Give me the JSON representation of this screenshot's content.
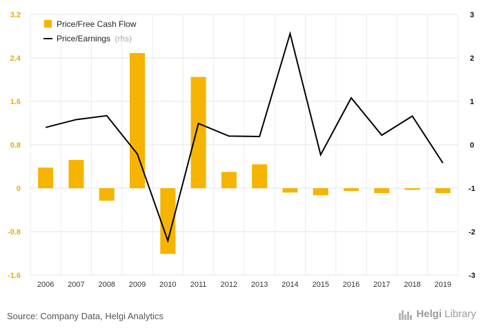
{
  "chart_data": {
    "type": "bar+line",
    "categories": [
      "2006",
      "2007",
      "2008",
      "2009",
      "2010",
      "2011",
      "2012",
      "2013",
      "2014",
      "2015",
      "2016",
      "2017",
      "2018",
      "2019"
    ],
    "series": [
      {
        "name": "Price/Free Cash Flow",
        "type": "bar",
        "axis": "left",
        "color": "#f5b400",
        "values": [
          0.38,
          0.52,
          -0.23,
          2.49,
          -1.21,
          2.05,
          0.3,
          0.44,
          -0.08,
          -0.13,
          -0.05,
          -0.09,
          -0.03,
          -0.09
        ]
      },
      {
        "name": "Price/Earnings",
        "name_suffix": "(rhs)",
        "type": "line",
        "axis": "right",
        "color": "#000000",
        "values": [
          0.4,
          0.58,
          0.67,
          -0.21,
          -2.21,
          0.49,
          0.2,
          0.19,
          2.56,
          -0.23,
          1.08,
          0.22,
          0.66,
          -0.42
        ]
      }
    ],
    "yleft": {
      "min": -1.6,
      "max": 3.2,
      "ticks": [
        "3.2",
        "2.4",
        "1.6",
        "0.8",
        "0",
        "-0.8",
        "-1.6"
      ]
    },
    "yright": {
      "min": -3,
      "max": 3,
      "ticks": [
        "3",
        "2",
        "1",
        "0",
        "-1",
        "-2",
        "-3"
      ]
    },
    "grid": true,
    "legend_position": "top-left"
  },
  "footer": {
    "source": "Source: Company Data, Helgi Analytics",
    "logo_a": "Helgi",
    "logo_b": "Library"
  }
}
